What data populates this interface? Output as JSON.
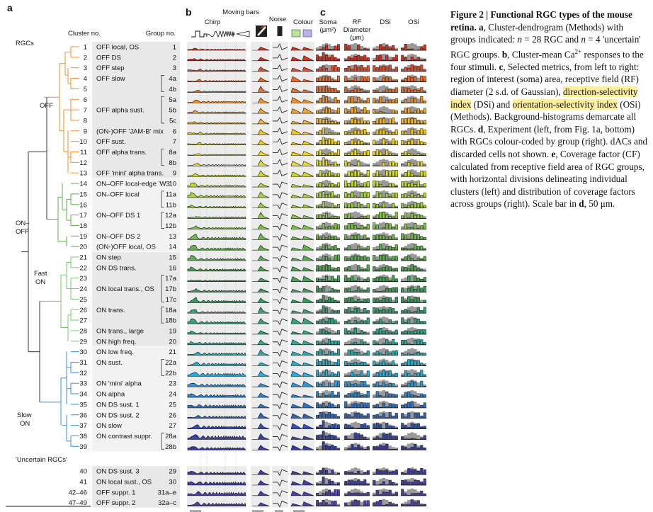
{
  "panels": {
    "a": "a",
    "b": "b",
    "c": "c"
  },
  "headers": {
    "cluster_no": "Cluster no.",
    "group_no": "Group no.",
    "rgcs": "RGCs",
    "uncertain": "'Uncertain RGCs'",
    "stim_chirp": "Chirp",
    "stim_moving": "Moving bars",
    "stim_noise": "Noise",
    "stim_colour": "Colour",
    "m_soma": "Soma",
    "m_soma_unit": "(μm²)",
    "m_rf1": "RF",
    "m_rf2": "Diameter",
    "m_rf_unit": "(μm)",
    "m_dsi": "DSi",
    "m_osi": "OSi"
  },
  "branches": {
    "off": "OFF",
    "onoff1": "ON–",
    "onoff2": "OFF",
    "fast1": "Fast",
    "fast2": "ON",
    "slow1": "Slow",
    "slow2": "ON"
  },
  "rows": [
    {
      "c": "1",
      "name": "OFF local, OS",
      "g": "1",
      "col": "#d7301f"
    },
    {
      "c": "2",
      "name": "OFF DS",
      "g": "2",
      "col": "#d7301f"
    },
    {
      "c": "3",
      "name": "OFF step",
      "g": "3",
      "col": "#e34a2a"
    },
    {
      "c": "4",
      "name": "OFF slow",
      "g": "4a",
      "col": "#ec6b2d"
    },
    {
      "c": "5",
      "name": "",
      "g": "4b",
      "col": "#ec6b2d"
    },
    {
      "c": "6",
      "name": "",
      "g": "5a",
      "col": "#f28c28"
    },
    {
      "c": "7",
      "name": "OFF alpha sust.",
      "g": "5b",
      "col": "#f5a623"
    },
    {
      "c": "8",
      "name": "",
      "g": "5c",
      "col": "#f7b52c"
    },
    {
      "c": "9",
      "name": "(ON-)OFF 'JAM-B' mix",
      "g": "6",
      "col": "#f5c518"
    },
    {
      "c": "10",
      "name": "OFF sust.",
      "g": "7",
      "col": "#f2d01a"
    },
    {
      "c": "11",
      "name": "OFF alpha trans.",
      "g": "8a",
      "col": "#ead81c"
    },
    {
      "c": "12",
      "name": "",
      "g": "8b",
      "col": "#e3dc22"
    },
    {
      "c": "13",
      "name": "OFF 'mini' alpha trans.",
      "g": "9",
      "col": "#d6dd25"
    },
    {
      "c": "14",
      "name": "ON–OFF local-edge 'W3'",
      "g": "10",
      "col": "#bedc2a"
    },
    {
      "c": "15",
      "name": "ON–OFF local",
      "g": "11a",
      "col": "#a8d634"
    },
    {
      "c": "16",
      "name": "",
      "g": "11b",
      "col": "#98cf3a"
    },
    {
      "c": "17",
      "name": "ON–OFF DS 1",
      "g": "12a",
      "col": "#8ac83f"
    },
    {
      "c": "18",
      "name": "",
      "g": "12b",
      "col": "#7cc243"
    },
    {
      "c": "19",
      "name": "ON–OFF DS 2",
      "g": "13",
      "col": "#6fbb46"
    },
    {
      "c": "20",
      "name": "(ON-)OFF local, OS",
      "g": "14",
      "col": "#62b44a"
    },
    {
      "c": "21",
      "name": "ON step",
      "g": "15",
      "col": "#58ad4e"
    },
    {
      "c": "22",
      "name": "ON DS trans.",
      "g": "16",
      "col": "#4fa852"
    },
    {
      "c": "23",
      "name": "",
      "g": "17a",
      "col": "#46a356"
    },
    {
      "c": "24",
      "name": "ON local trans., OS",
      "g": "17b",
      "col": "#3f9e5a"
    },
    {
      "c": "25",
      "name": "",
      "g": "17c",
      "col": "#3a9a5e"
    },
    {
      "c": "26",
      "name": "ON trans.",
      "g": "18a",
      "col": "#36a070"
    },
    {
      "c": "27",
      "name": "",
      "g": "18b",
      "col": "#33a37e"
    },
    {
      "c": "28",
      "name": "ON trans., large",
      "g": "19",
      "col": "#30a68c"
    },
    {
      "c": "29",
      "name": "ON high freq.",
      "g": "20",
      "col": "#2ea99a"
    },
    {
      "c": "30",
      "name": "ON low freq.",
      "g": "21",
      "col": "#2cabb0"
    },
    {
      "c": "31",
      "name": "ON sust.",
      "g": "22a",
      "col": "#2aaec8"
    },
    {
      "c": "32",
      "name": "",
      "g": "22b",
      "col": "#28aadb"
    },
    {
      "c": "33",
      "name": "ON 'mini' alpha",
      "g": "23",
      "col": "#2a98d6"
    },
    {
      "c": "34",
      "name": "ON alpha",
      "g": "24",
      "col": "#2c86cf"
    },
    {
      "c": "35",
      "name": "ON DS sust. 1",
      "g": "25",
      "col": "#2e74c6"
    },
    {
      "c": "36",
      "name": "ON DS sust. 2",
      "g": "26",
      "col": "#2f62bb"
    },
    {
      "c": "37",
      "name": "ON slow",
      "g": "27",
      "col": "#3052b0"
    },
    {
      "c": "38",
      "name": "ON contrast suppr.",
      "g": "28a",
      "col": "#3244a5"
    },
    {
      "c": "39",
      "name": "",
      "g": "28b",
      "col": "#333a9c"
    },
    {
      "c": "40",
      "name": "ON DS sust. 3",
      "g": "29",
      "col": "#3a3ba0"
    },
    {
      "c": "41",
      "name": "ON local sust., OS",
      "g": "30",
      "col": "#4040a6"
    },
    {
      "c": "42–46",
      "name": "OFF suppr. 1",
      "g": "31a–e",
      "col": "#4a3fa8"
    },
    {
      "c": "47–49",
      "name": "OFF suppr. 2",
      "g": "32a–c",
      "col": "#5540aa"
    }
  ],
  "scales": {
    "chirp": "2 s",
    "moving": "2 s",
    "noise": "1 s",
    "colour": "2 s"
  },
  "axes": {
    "soma": [
      "0",
      "200"
    ],
    "rf": [
      "0",
      "400"
    ],
    "dsi": [
      "0",
      "0.5"
    ],
    "osi": [
      "0",
      "0.5"
    ]
  },
  "caption": {
    "title": "Figure 2 | Functional RGC types of the mouse retina.",
    "a_letter": "a",
    "a_text": ", Cluster-dendrogram (Methods) with groups indicated: ",
    "n1": "n",
    "n1_text": " = 28 RGC and ",
    "n2": "n",
    "n2_text": " = 4 'uncertain' RGC groups. ",
    "b_letter": "b",
    "b_text": ", Cluster-mean Ca",
    "b_sup": "2+",
    "b_text2": " responses to the four stimuli. ",
    "c_letter": "c",
    "c_text": ", Selected metrics, from left to right: region of interest (soma) area, receptive field (RF) diameter (2 s.d. of Gaussian), ",
    "hl1": "direction-selectivity index",
    "c_text2": " (DSi) and ",
    "hl2": "orientation-selectivity index",
    "c_text3": " (OSi) (Methods). Background-histograms demarcate all RGCs. ",
    "d_letter": "d",
    "d_text": ", Experiment (left, from Fig. 1a, bottom) with RGCs colour-coded by group (right). dACs and discarded cells not shown. ",
    "e_letter": "e",
    "e_text": ", Coverage factor (CF) calculated from receptive field area of RGC groups, with horizontal divisions delineating individual clusters (left) and distribution of coverage factors across groups (right). Scale bar in ",
    "d2_letter": "d",
    "e_text2": ", 50 μm."
  }
}
